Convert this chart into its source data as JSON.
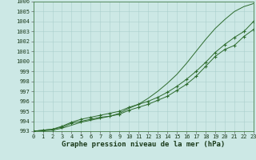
{
  "xlabel": "Graphe pression niveau de la mer (hPa)",
  "x": [
    0,
    1,
    2,
    3,
    4,
    5,
    6,
    7,
    8,
    9,
    10,
    11,
    12,
    13,
    14,
    15,
    16,
    17,
    18,
    19,
    20,
    21,
    22,
    23
  ],
  "line_smooth": [
    993.0,
    993.05,
    993.1,
    993.3,
    993.6,
    993.9,
    994.1,
    994.3,
    994.5,
    994.8,
    995.3,
    995.7,
    996.3,
    997.0,
    997.8,
    998.7,
    999.8,
    1001.0,
    1002.2,
    1003.3,
    1004.2,
    1005.0,
    1005.5,
    1005.8
  ],
  "line_markers1": [
    993.0,
    993.1,
    993.2,
    993.5,
    993.9,
    994.2,
    994.4,
    994.6,
    994.8,
    995.0,
    995.4,
    995.7,
    996.0,
    996.4,
    996.9,
    997.5,
    998.2,
    999.0,
    999.9,
    1000.9,
    1001.7,
    1002.4,
    1003.0,
    1004.0
  ],
  "line_markers2": [
    993.0,
    993.1,
    993.2,
    993.4,
    993.8,
    994.0,
    994.2,
    994.4,
    994.5,
    994.7,
    995.1,
    995.4,
    995.7,
    996.1,
    996.5,
    997.1,
    997.7,
    998.5,
    999.5,
    1000.5,
    1001.2,
    1001.6,
    1002.5,
    1003.2
  ],
  "line_color": "#2d6b2d",
  "bg_color": "#cce8e5",
  "grid_color": "#aacfcc",
  "ylim": [
    993,
    1006
  ],
  "xlim": [
    0,
    23
  ],
  "yticks": [
    993,
    994,
    995,
    996,
    997,
    998,
    999,
    1000,
    1001,
    1002,
    1003,
    1004,
    1005,
    1006
  ],
  "xticks": [
    0,
    1,
    2,
    3,
    4,
    5,
    6,
    7,
    8,
    9,
    10,
    11,
    12,
    13,
    14,
    15,
    16,
    17,
    18,
    19,
    20,
    21,
    22,
    23
  ],
  "tick_fontsize": 5.0,
  "xlabel_fontsize": 6.5,
  "marker_size": 2.8,
  "line_width": 0.7
}
